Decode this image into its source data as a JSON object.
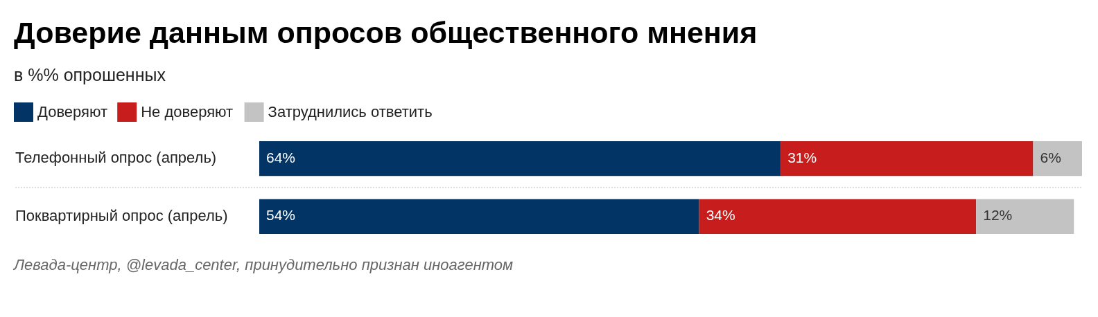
{
  "chart_data": {
    "type": "bar",
    "orientation": "horizontal",
    "stacked": true,
    "title": "Доверие данным опросов общественного мнения",
    "subtitle": "в %% опрошенных",
    "categories": [
      "Телефонный опрос (апрель)",
      "Поквартирный опрос (апрель)"
    ],
    "series": [
      {
        "name": "Доверяют",
        "color": "#023466",
        "values": [
          64,
          54
        ],
        "value_labels": [
          "64%",
          "54%"
        ]
      },
      {
        "name": "Не доверяют",
        "color": "#c71e1d",
        "values": [
          31,
          34
        ],
        "value_labels": [
          "31%",
          "34%"
        ]
      },
      {
        "name": "Затруднились ответить",
        "color": "#c3c3c3",
        "values": [
          6,
          12
        ],
        "value_labels": [
          "6%",
          "12%"
        ]
      }
    ],
    "legend": "top left",
    "annotations": [
      "Левада-центр, @levada_center, принудительно признан иноагентом"
    ]
  }
}
